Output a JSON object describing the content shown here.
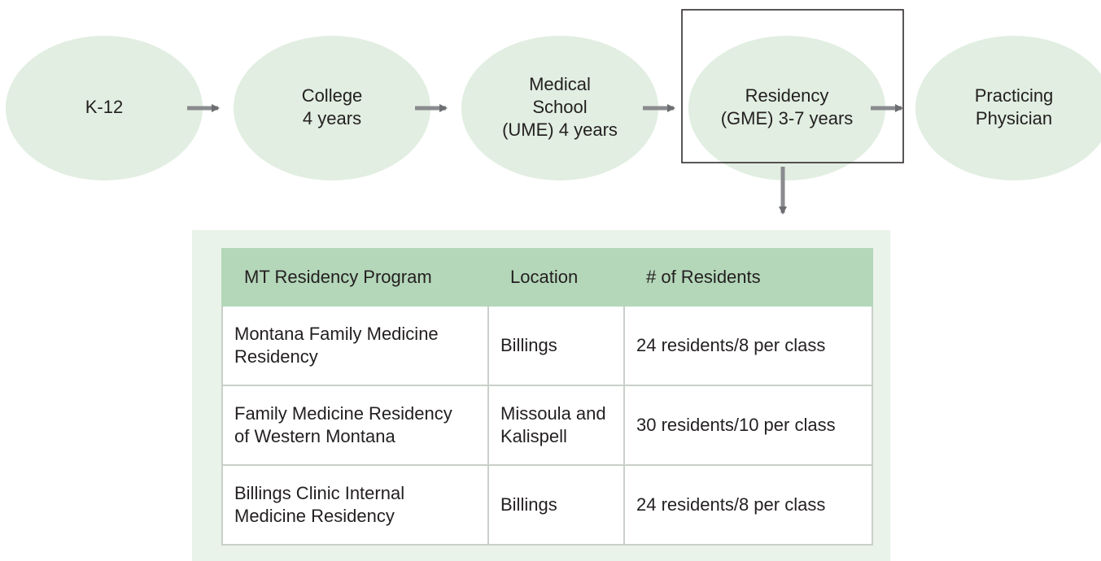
{
  "nodes": [
    {
      "lines": [
        "K-12"
      ]
    },
    {
      "lines": [
        "College",
        "4 years"
      ]
    },
    {
      "lines": [
        "Medical",
        "School",
        "(UME) 4 years"
      ]
    },
    {
      "lines": [
        "Residency",
        "(GME) 3-7 years"
      ]
    },
    {
      "lines": [
        "Practicing",
        "Physician"
      ]
    }
  ],
  "table": {
    "header": [
      "MT Residency Program",
      "Location",
      "# of Residents"
    ],
    "rows": [
      [
        [
          "Montana Family Medicine",
          "Residency"
        ],
        [
          "Billings"
        ],
        [
          "24 residents/8 per class"
        ]
      ],
      [
        [
          "Family Medicine Residency",
          "of Western Montana"
        ],
        [
          "Missoula and",
          "Kalispell"
        ],
        [
          "30 residents/10 per class"
        ]
      ],
      [
        [
          "Billings Clinic Internal",
          "Medicine Residency"
        ],
        [
          "Billings"
        ],
        [
          "24 residents/8 per class"
        ]
      ]
    ]
  }
}
